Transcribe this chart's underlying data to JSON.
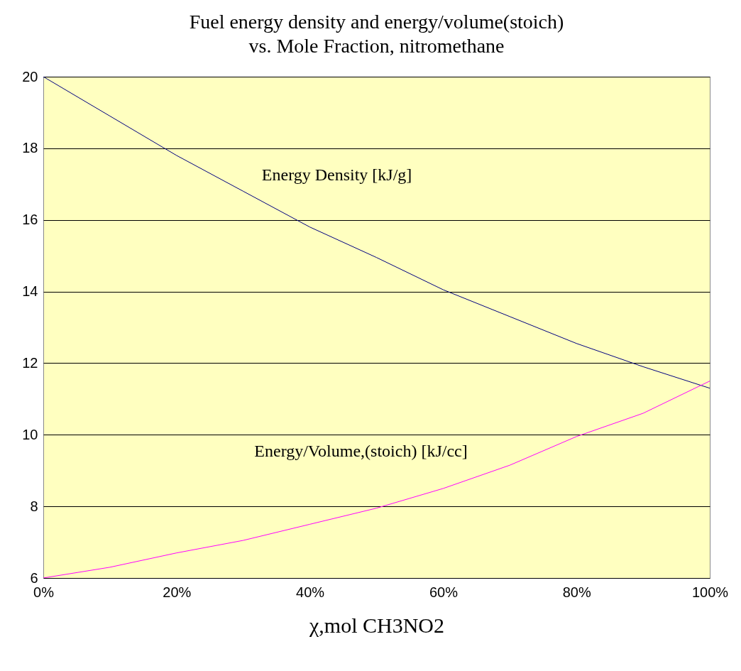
{
  "chart_data": {
    "type": "line",
    "title": "Fuel energy density and energy/volume(stoich)",
    "subtitle": "vs. Mole Fraction, nitromethane",
    "xlabel": "χ,mol CH3NO2",
    "x": [
      0,
      10,
      20,
      30,
      40,
      50,
      60,
      70,
      80,
      90,
      100
    ],
    "series": [
      {
        "name": "Energy Density [kJ/g]",
        "color": "#000080",
        "values": [
          20,
          18.9,
          17.8,
          16.8,
          15.8,
          14.95,
          14.05,
          13.3,
          12.55,
          11.9,
          11.3
        ]
      },
      {
        "name": "Energy/Volume,(stoich) [kJ/cc]",
        "color": "#ff00ff",
        "values": [
          6.0,
          6.3,
          6.7,
          7.05,
          7.5,
          7.95,
          8.5,
          9.15,
          9.95,
          10.6,
          11.5
        ]
      }
    ],
    "xlim": [
      0,
      100
    ],
    "xticks": [
      {
        "value": 0,
        "label": "0%"
      },
      {
        "value": 20,
        "label": "20%"
      },
      {
        "value": 40,
        "label": "40%"
      },
      {
        "value": 60,
        "label": "60%"
      },
      {
        "value": 80,
        "label": "80%"
      },
      {
        "value": 100,
        "label": "100%"
      }
    ],
    "ylim": [
      6,
      20
    ],
    "yticks": [
      6,
      8,
      10,
      12,
      14,
      16,
      18,
      20
    ],
    "grid": "y",
    "marker": "none",
    "line_style": "solid"
  }
}
